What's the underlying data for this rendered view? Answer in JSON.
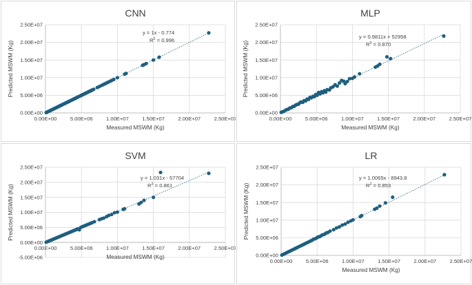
{
  "charts_meta": {
    "point_color": "#1f5f7f",
    "grid_color": "#d9d9d9",
    "axis_color": "#bfbfbf"
  },
  "chart_data": [
    {
      "type": "scatter",
      "title": "CNN",
      "xlabel": "Measured MSWM (Kg)",
      "ylabel": "Predicted MSWM (Kg)",
      "xlim": [
        0,
        25000000
      ],
      "ylim": [
        0,
        25000000
      ],
      "xticks": [
        "0.00E+00",
        "5.00E+06",
        "1.00E+07",
        "1.50E+07",
        "2.00E+07",
        "2.50E+07"
      ],
      "yticks": [
        "0.00E+00",
        "5.00E+06",
        "1.00E+07",
        "1.50E+07",
        "2.00E+07",
        "2.50E+07"
      ],
      "grid": true,
      "trendline": {
        "style": "dotted",
        "slope": 1,
        "intercept": -0.774
      },
      "equation": "y = 1x - 0.774",
      "r2_prefix": "R",
      "r2_value": " = 0.996",
      "x": [
        100000,
        200000,
        300000,
        400000,
        500000,
        600000,
        700000,
        800000,
        900000,
        1000000,
        1100000,
        1200000,
        1300000,
        1400000,
        1500000,
        1600000,
        1700000,
        1800000,
        1900000,
        2000000,
        2100000,
        2200000,
        2300000,
        2400000,
        2500000,
        2600000,
        2700000,
        2800000,
        2900000,
        3000000,
        3100000,
        3200000,
        3300000,
        3400000,
        3500000,
        3600000,
        3700000,
        3800000,
        3900000,
        4000000,
        4100000,
        4200000,
        4300000,
        4400000,
        4500000,
        4600000,
        4700000,
        4800000,
        4900000,
        5000000,
        5100000,
        5200000,
        5300000,
        5400000,
        5500000,
        5600000,
        5700000,
        5800000,
        5900000,
        6000000,
        6100000,
        6200000,
        6300000,
        6400000,
        6500000,
        6600000,
        6700000,
        7200000,
        7500000,
        7800000,
        8000000,
        8200000,
        8400000,
        8600000,
        8800000,
        9000000,
        9200000,
        9500000,
        10000000,
        11000000,
        11200000,
        13500000,
        13700000,
        14000000,
        15000000,
        15800000,
        22700000
      ],
      "y": [
        100000,
        200000,
        300000,
        400000,
        500000,
        600000,
        700000,
        800000,
        900000,
        1000000,
        1100000,
        1200000,
        1300000,
        1400000,
        1500000,
        1600000,
        1700000,
        1800000,
        1900000,
        2000000,
        2100000,
        2200000,
        2300000,
        2400000,
        2500000,
        2600000,
        2700000,
        2800000,
        2900000,
        3000000,
        3100000,
        3200000,
        3300000,
        3400000,
        3500000,
        3600000,
        3700000,
        3800000,
        3900000,
        4000000,
        4100000,
        4200000,
        4300000,
        4400000,
        4500000,
        4600000,
        4700000,
        4800000,
        4900000,
        5000000,
        5100000,
        5200000,
        5300000,
        5400000,
        5500000,
        5600000,
        5700000,
        5800000,
        5900000,
        6000000,
        6100000,
        6200000,
        6300000,
        6400000,
        6500000,
        6600000,
        6700000,
        7200000,
        7500000,
        7800000,
        8000000,
        8200000,
        8400000,
        8600000,
        8800000,
        9000000,
        9200000,
        9500000,
        10000000,
        11000000,
        11200000,
        13500000,
        13700000,
        14000000,
        15000000,
        15800000,
        22700000
      ]
    },
    {
      "type": "scatter",
      "title": "MLP",
      "xlabel": "Measured MSWM (Kg)",
      "ylabel": "Predicted MSWM (Kg)",
      "xlim": [
        0,
        25000000
      ],
      "ylim": [
        0,
        25000000
      ],
      "xticks": [
        "0.00E+00",
        "5.00E+06",
        "1.00E+07",
        "1.50E+07",
        "2.00E+07",
        "2.50E+07"
      ],
      "yticks": [
        "0.00E+00",
        "5.00E+06",
        "1.00E+07",
        "1.50E+07",
        "2.00E+07",
        "2.50E+07"
      ],
      "grid": true,
      "trendline": {
        "style": "dotted",
        "slope": 0.9811,
        "intercept": 52958
      },
      "equation": "y = 0.9811x + 52958",
      "r2_prefix": "R",
      "r2_value": " = 0.870",
      "x": [
        100000,
        300000,
        500000,
        700000,
        900000,
        1100000,
        1300000,
        1500000,
        1700000,
        1900000,
        2100000,
        2300000,
        2500000,
        2700000,
        2900000,
        3100000,
        3300000,
        3500000,
        3700000,
        3900000,
        4100000,
        4300000,
        4500000,
        4700000,
        4900000,
        5100000,
        5300000,
        5500000,
        5700000,
        5900000,
        6100000,
        6300000,
        6500000,
        6800000,
        7000000,
        7300000,
        7600000,
        7900000,
        8200000,
        8500000,
        8800000,
        9000000,
        9300000,
        9600000,
        10000000,
        10300000,
        11000000,
        13200000,
        13500000,
        13800000,
        14800000,
        15300000,
        22700000
      ],
      "y": [
        150000,
        320000,
        480000,
        750000,
        950000,
        1050000,
        1400000,
        1450000,
        1800000,
        1850000,
        2200000,
        2400000,
        2450000,
        2900000,
        3100000,
        3000000,
        3500000,
        3400000,
        3900000,
        3800000,
        4400000,
        4300000,
        4700000,
        4600000,
        5200000,
        5000000,
        5800000,
        5400000,
        6000000,
        5700000,
        6300000,
        5900000,
        6600000,
        6500000,
        7100000,
        7400000,
        8000000,
        7600000,
        8500000,
        9200000,
        9000000,
        8300000,
        8900000,
        9700000,
        9800000,
        10200000,
        11100000,
        13000000,
        13300000,
        13800000,
        15900000,
        15400000,
        21800000
      ]
    },
    {
      "type": "scatter",
      "title": "SVM",
      "xlabel": "Measured MSWM (Kg)",
      "ylabel": "Predicted MSWM (Kg)",
      "xlim": [
        0,
        25000000
      ],
      "ylim": [
        -5000000,
        25000000
      ],
      "xticks": [
        "0.00E+00",
        "5.00E+06",
        "1.00E+07",
        "1.50E+07",
        "2.00E+07",
        "2.50E+07"
      ],
      "yticks": [
        "-5.00E+06",
        "0.00E+00",
        "5.00E+06",
        "1.00E+07",
        "1.50E+07",
        "2.00E+07",
        "2.50E+07"
      ],
      "grid": true,
      "trendline": {
        "style": "dotted",
        "slope": 1.031,
        "intercept": -57704
      },
      "equation": "y = 1.031x - 57704",
      "r2_prefix": "R",
      "r2_value": " = 0.861",
      "x": [
        100000,
        300000,
        500000,
        700000,
        900000,
        1100000,
        1300000,
        1500000,
        1700000,
        1900000,
        2100000,
        2300000,
        2500000,
        2700000,
        2900000,
        3100000,
        3300000,
        3500000,
        3700000,
        3900000,
        4100000,
        4300000,
        4500000,
        4700000,
        4900000,
        5100000,
        5300000,
        5500000,
        5700000,
        5900000,
        6100000,
        6300000,
        6500000,
        6800000,
        7500000,
        7800000,
        8100000,
        8500000,
        8800000,
        9200000,
        9600000,
        10000000,
        10800000,
        11000000,
        13000000,
        13300000,
        13700000,
        15000000,
        16000000,
        22700000
      ],
      "y": [
        80000,
        300000,
        500000,
        700000,
        900000,
        1100000,
        1300000,
        1500000,
        1700000,
        1900000,
        2100000,
        2300000,
        2500000,
        2700000,
        2900000,
        3100000,
        3300000,
        3500000,
        3700000,
        3900000,
        4100000,
        4300000,
        4500000,
        4200000,
        5000000,
        5200000,
        5400000,
        5600000,
        5800000,
        6000000,
        6200000,
        6400000,
        6600000,
        6900000,
        7600000,
        7900000,
        8100000,
        8600000,
        9000000,
        9300000,
        9900000,
        10100000,
        11000000,
        11200000,
        12800000,
        13300000,
        14000000,
        15000000,
        23300000,
        23000000
      ]
    },
    {
      "type": "scatter",
      "title": "LR",
      "xlabel": "Measured MSWM (Kg)",
      "ylabel": "Predicted MSWM (Kg)",
      "xlim": [
        0,
        25000000
      ],
      "ylim": [
        0,
        25000000
      ],
      "xticks": [
        "0.00E+00",
        "5.00E+06",
        "1.00E+07",
        "1.50E+07",
        "2.00E+07",
        "2.50E+07"
      ],
      "yticks": [
        "0.00E+00",
        "5.00E+06",
        "1.00E+07",
        "1.50E+07",
        "2.00E+07",
        "2.50E+07"
      ],
      "grid": true,
      "trendline": {
        "style": "dotted",
        "slope": 1.0065,
        "intercept": -8943.8
      },
      "equation": "y = 1.0065x - 8943.8",
      "r2_prefix": "R",
      "r2_value": " = 0.853",
      "x": [
        100000,
        300000,
        500000,
        700000,
        900000,
        1100000,
        1300000,
        1500000,
        1700000,
        1900000,
        2100000,
        2300000,
        2500000,
        2700000,
        2900000,
        3100000,
        3300000,
        3500000,
        3700000,
        3900000,
        4100000,
        4300000,
        4500000,
        4700000,
        4900000,
        5100000,
        5300000,
        5500000,
        5700000,
        5900000,
        6100000,
        6300000,
        6500000,
        6800000,
        7300000,
        7700000,
        8100000,
        8500000,
        8900000,
        9300000,
        9700000,
        10000000,
        11000000,
        11200000,
        13000000,
        13300000,
        13700000,
        14500000,
        15500000,
        22700000
      ],
      "y": [
        100000,
        300000,
        500000,
        700000,
        900000,
        1100000,
        1300000,
        1500000,
        1700000,
        1900000,
        2100000,
        2300000,
        2500000,
        2700000,
        2900000,
        3100000,
        3300000,
        3500000,
        3700000,
        3900000,
        4100000,
        4300000,
        4600000,
        4700000,
        4900000,
        5200000,
        5300000,
        5500000,
        5800000,
        5900000,
        6100000,
        6400000,
        6500000,
        6900000,
        7300000,
        7800000,
        8100000,
        8600000,
        8900000,
        9400000,
        9800000,
        10100000,
        11000000,
        11300000,
        13100000,
        13400000,
        14000000,
        14900000,
        16500000,
        22900000
      ]
    }
  ]
}
